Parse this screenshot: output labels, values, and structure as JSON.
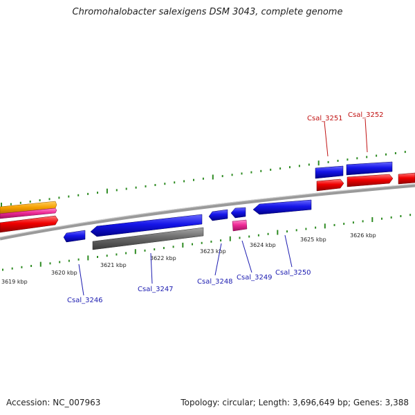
{
  "title": "Chromohalobacter salexigens DSM 3043, complete genome",
  "footer": {
    "accession": "Accession: NC_007963",
    "summary": "Topology: circular; Length: 3,696,649 bp; Genes: 3,388"
  },
  "colors": {
    "forward_cds": "#1010e0",
    "reverse_cds": "#e00000",
    "pseudo": "#707070",
    "rna": "#e82a8a",
    "orange": "#f5a000",
    "backbone": "#8a8a8a",
    "tick": "#2e8b22",
    "label_forward": "#1a1ab0",
    "label_reverse": "#c01010"
  },
  "scale": {
    "unit": "kbp",
    "labels": [
      "3619 kbp",
      "3620 kbp",
      "3621 kbp",
      "3622 kbp",
      "3623 kbp",
      "3624 kbp",
      "3625 kbp",
      "3626 kbp"
    ]
  },
  "genes": [
    {
      "id": "Csal_3246",
      "strand": "+"
    },
    {
      "id": "Csal_3247",
      "strand": "+"
    },
    {
      "id": "Csal_3248",
      "strand": "+"
    },
    {
      "id": "Csal_3249",
      "strand": "+"
    },
    {
      "id": "Csal_3250",
      "strand": "+"
    },
    {
      "id": "Csal_3251",
      "strand": "-"
    },
    {
      "id": "Csal_3252",
      "strand": "-"
    }
  ]
}
